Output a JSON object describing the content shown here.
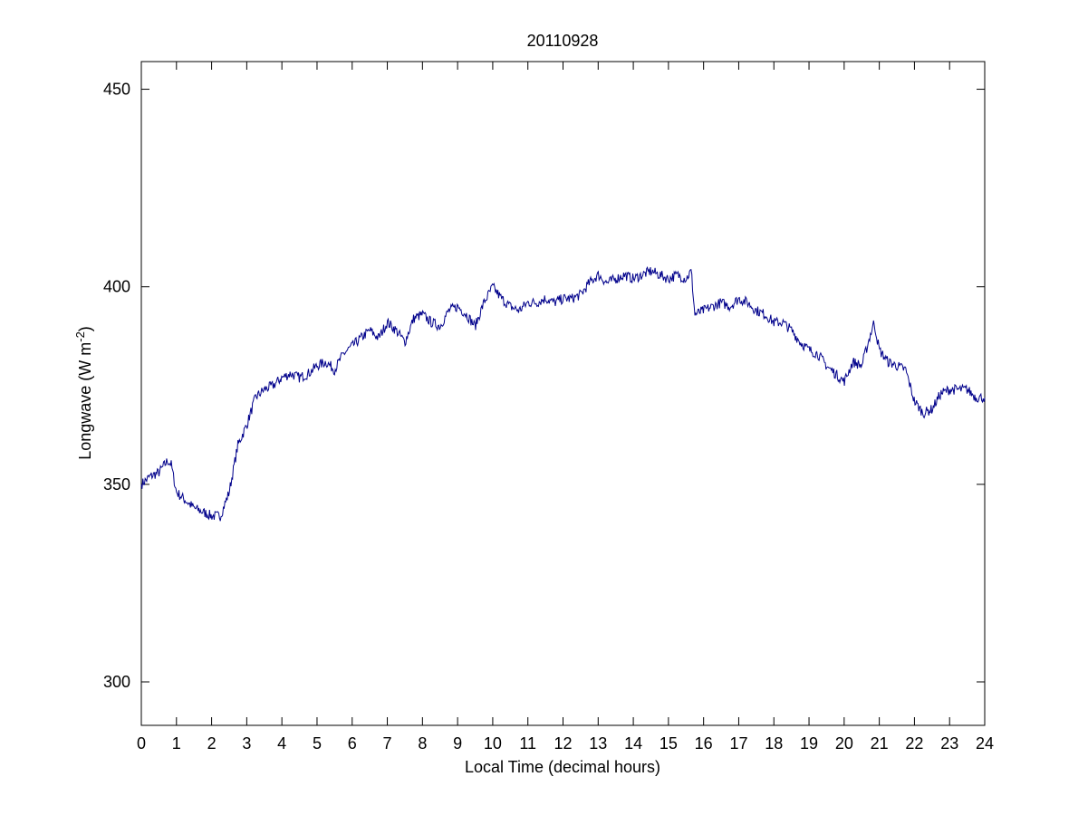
{
  "chart_data": {
    "type": "line",
    "title": "20110928",
    "xlabel": "Local Time (decimal hours)",
    "ylabel": {
      "main": "Longwave (W m",
      "superscript": "-2",
      "close": ")"
    },
    "xlim": [
      0,
      24
    ],
    "ylim": [
      289,
      457
    ],
    "xticks": [
      0,
      1,
      2,
      3,
      4,
      5,
      6,
      7,
      8,
      9,
      10,
      11,
      12,
      13,
      14,
      15,
      16,
      17,
      18,
      19,
      20,
      21,
      22,
      23,
      24
    ],
    "yticks": [
      300,
      350,
      400,
      450
    ],
    "grid": false,
    "line_color": "#00008b",
    "series": [
      {
        "x": [
          0.0,
          0.25,
          0.5,
          0.75,
          0.85,
          1.0,
          1.25,
          1.5,
          1.75,
          2.0,
          2.25,
          2.5,
          2.75,
          3.0,
          3.25,
          3.5,
          3.75,
          4.0,
          4.25,
          4.5,
          4.75,
          5.0,
          5.25,
          5.5,
          5.75,
          6.0,
          6.25,
          6.5,
          6.75,
          7.0,
          7.25,
          7.5,
          7.75,
          8.0,
          8.25,
          8.5,
          8.75,
          9.0,
          9.25,
          9.5,
          9.75,
          10.0,
          10.25,
          10.5,
          10.75,
          11.0,
          11.25,
          11.5,
          11.75,
          12.0,
          12.25,
          12.5,
          12.75,
          13.0,
          13.25,
          13.5,
          13.75,
          14.0,
          14.25,
          14.5,
          14.75,
          15.0,
          15.25,
          15.5,
          15.65,
          15.75,
          16.0,
          16.25,
          16.5,
          16.75,
          17.0,
          17.25,
          17.5,
          17.75,
          18.0,
          18.25,
          18.5,
          18.75,
          19.0,
          19.25,
          19.5,
          19.75,
          20.0,
          20.25,
          20.5,
          20.75,
          20.85,
          21.0,
          21.25,
          21.5,
          21.75,
          22.0,
          22.25,
          22.5,
          22.75,
          23.0,
          23.25,
          23.5,
          23.75,
          24.0
        ],
        "y": [
          350,
          352,
          353,
          356,
          355,
          348,
          346,
          344,
          343,
          342,
          342,
          348,
          360,
          365,
          372,
          374,
          375,
          377,
          378,
          377,
          378,
          380,
          381,
          379,
          383,
          385,
          387,
          389,
          387,
          391,
          389,
          386,
          392,
          393,
          391,
          390,
          394,
          395,
          393,
          390,
          396,
          400,
          397,
          395,
          394,
          396,
          396,
          397,
          396,
          397,
          397,
          398,
          401,
          403,
          401,
          402,
          403,
          402,
          403,
          404,
          403,
          402,
          403,
          402,
          404,
          393,
          394,
          395,
          396,
          395,
          397,
          396,
          394,
          393,
          391,
          391,
          389,
          386,
          384,
          383,
          380,
          378,
          376,
          381,
          380,
          388,
          391,
          384,
          381,
          380,
          379,
          371,
          368,
          369,
          373,
          374,
          374,
          374,
          372,
          372
        ]
      }
    ]
  }
}
